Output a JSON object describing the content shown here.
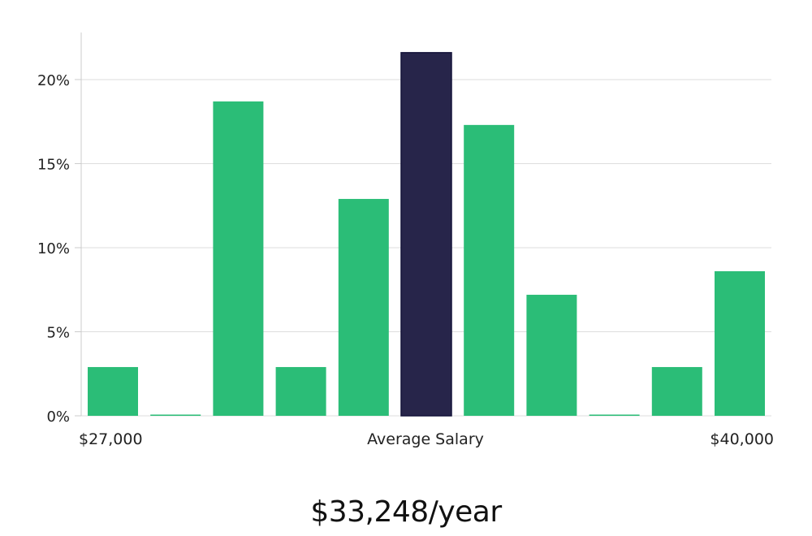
{
  "chart_data": {
    "type": "bar",
    "title": "",
    "xlabel": "Average Salary",
    "ylabel": "",
    "x_range_labels": {
      "min": "$27,000",
      "max": "$40,000"
    },
    "bin_count": 11,
    "values": [
      2.9,
      0.0,
      18.7,
      2.9,
      12.9,
      21.6,
      17.3,
      7.2,
      0.0,
      2.9,
      8.6
    ],
    "highlight_index": 5,
    "ylim": [
      0,
      22.8
    ],
    "yticks": [
      0,
      5,
      10,
      15,
      20
    ],
    "ytick_labels": [
      "0%",
      "5%",
      "10%",
      "15%",
      "20%"
    ],
    "grid": true,
    "colors": {
      "bar": "#2bbd77",
      "highlight": "#27254a",
      "grid": "#dddddd",
      "axis": "#cccccc"
    }
  },
  "summary": {
    "average_salary_text": "$33,248/year"
  }
}
